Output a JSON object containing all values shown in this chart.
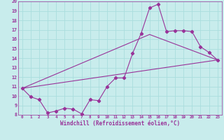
{
  "xlabel": "Windchill (Refroidissement éolien,°C)",
  "bg_color": "#c8ecec",
  "line_color": "#993399",
  "grid_color": "#aadddd",
  "xlim": [
    -0.5,
    23.5
  ],
  "ylim": [
    8,
    20
  ],
  "xticks": [
    0,
    1,
    2,
    3,
    4,
    5,
    6,
    7,
    8,
    9,
    10,
    11,
    12,
    13,
    14,
    15,
    16,
    17,
    18,
    19,
    20,
    21,
    22,
    23
  ],
  "yticks": [
    8,
    9,
    10,
    11,
    12,
    13,
    14,
    15,
    16,
    17,
    18,
    19,
    20
  ],
  "line1_x": [
    0,
    1,
    2,
    3,
    4,
    5,
    6,
    7,
    8,
    9,
    10,
    11,
    12,
    13,
    14,
    15,
    16,
    17,
    18,
    19,
    20,
    21,
    22,
    23
  ],
  "line1_y": [
    10.8,
    9.9,
    9.6,
    8.2,
    8.4,
    8.7,
    8.6,
    8.1,
    9.6,
    9.5,
    11.0,
    11.9,
    11.9,
    14.5,
    16.6,
    19.3,
    19.7,
    16.8,
    16.9,
    16.9,
    16.8,
    15.2,
    14.6,
    13.8
  ],
  "line2_x": [
    0,
    23
  ],
  "line2_y": [
    10.8,
    13.8
  ],
  "line3_x": [
    0,
    15,
    23
  ],
  "line3_y": [
    10.8,
    16.5,
    13.8
  ]
}
